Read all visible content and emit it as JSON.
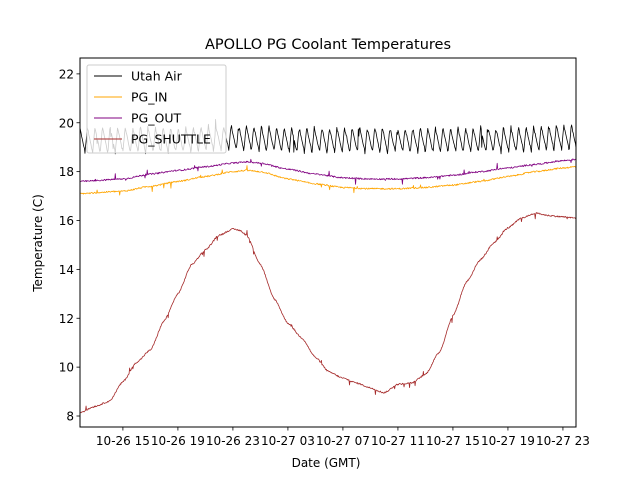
{
  "chart_data": {
    "type": "line",
    "title": "APOLLO PG Coolant Temperatures",
    "xlabel": "Date (GMT)",
    "ylabel": "Temperature (C)",
    "xlim_hours": [
      -3.12,
      32.95
    ],
    "x_unit": "hours since 10-26 15:00",
    "ylim": [
      7.55,
      22.65
    ],
    "yticks": [
      8,
      10,
      12,
      14,
      16,
      18,
      20,
      22
    ],
    "xticks": [
      {
        "hour": 0,
        "label": "10-26 15"
      },
      {
        "hour": 4,
        "label": "10-26 19"
      },
      {
        "hour": 8,
        "label": "10-26 23"
      },
      {
        "hour": 12,
        "label": "10-27 03"
      },
      {
        "hour": 16,
        "label": "10-27 07"
      },
      {
        "hour": 20,
        "label": "10-27 11"
      },
      {
        "hour": 24,
        "label": "10-27 15"
      },
      {
        "hour": 28,
        "label": "10-27 19"
      },
      {
        "hour": 32,
        "label": "10-27 23"
      }
    ],
    "grid": false,
    "legend_position": "top-left",
    "series": [
      {
        "name": "Utah Air",
        "color": "#000000",
        "style": "sawtooth oscillation",
        "x": [
          -3.1,
          0,
          4,
          8,
          12,
          16,
          20,
          24,
          28,
          32,
          32.9
        ],
        "y": [
          19.3,
          19.3,
          19.3,
          19.4,
          19.3,
          19.3,
          19.3,
          19.3,
          19.3,
          19.4,
          19.4
        ],
        "oscillation_amplitude": 0.55,
        "oscillation_period_hours": 0.55
      },
      {
        "name": "PG_IN",
        "color": "#ffa500",
        "x": [
          -3.1,
          0,
          2,
          4,
          6,
          8,
          9,
          10,
          12,
          14,
          16,
          18,
          20,
          22,
          24,
          26,
          28,
          30,
          32,
          32.9
        ],
        "y": [
          17.1,
          17.2,
          17.4,
          17.6,
          17.8,
          18.0,
          18.05,
          18.0,
          17.7,
          17.5,
          17.35,
          17.3,
          17.3,
          17.35,
          17.45,
          17.6,
          17.8,
          18.0,
          18.15,
          18.2
        ]
      },
      {
        "name": "PG_OUT",
        "color": "#800080",
        "x": [
          -3.1,
          0,
          2,
          4,
          6,
          8,
          9,
          10,
          12,
          14,
          16,
          18,
          20,
          22,
          24,
          26,
          28,
          30,
          32,
          32.9
        ],
        "y": [
          17.6,
          17.7,
          17.9,
          18.05,
          18.2,
          18.35,
          18.4,
          18.35,
          18.1,
          17.9,
          17.75,
          17.7,
          17.7,
          17.75,
          17.85,
          18.0,
          18.15,
          18.3,
          18.45,
          18.5
        ]
      },
      {
        "name": "PG_SHUTTLE",
        "color": "#a52a2a",
        "x": [
          -3.1,
          -2,
          -1,
          0,
          1,
          2,
          3,
          4,
          5,
          6,
          7,
          8,
          8.5,
          9,
          10,
          11,
          12,
          13,
          14,
          15,
          16,
          17,
          18,
          19,
          20,
          21,
          22,
          23,
          24,
          25,
          26,
          27,
          28,
          29,
          30,
          31,
          32,
          32.9
        ],
        "y": [
          8.15,
          8.4,
          8.6,
          9.4,
          10.2,
          10.7,
          11.9,
          13.0,
          14.2,
          14.8,
          15.4,
          15.65,
          15.6,
          15.4,
          14.2,
          12.8,
          11.8,
          11.2,
          10.4,
          9.8,
          9.55,
          9.35,
          9.15,
          8.95,
          9.3,
          9.35,
          9.7,
          10.6,
          12.1,
          13.5,
          14.4,
          15.1,
          15.7,
          16.1,
          16.3,
          16.2,
          16.15,
          16.1
        ]
      }
    ]
  }
}
